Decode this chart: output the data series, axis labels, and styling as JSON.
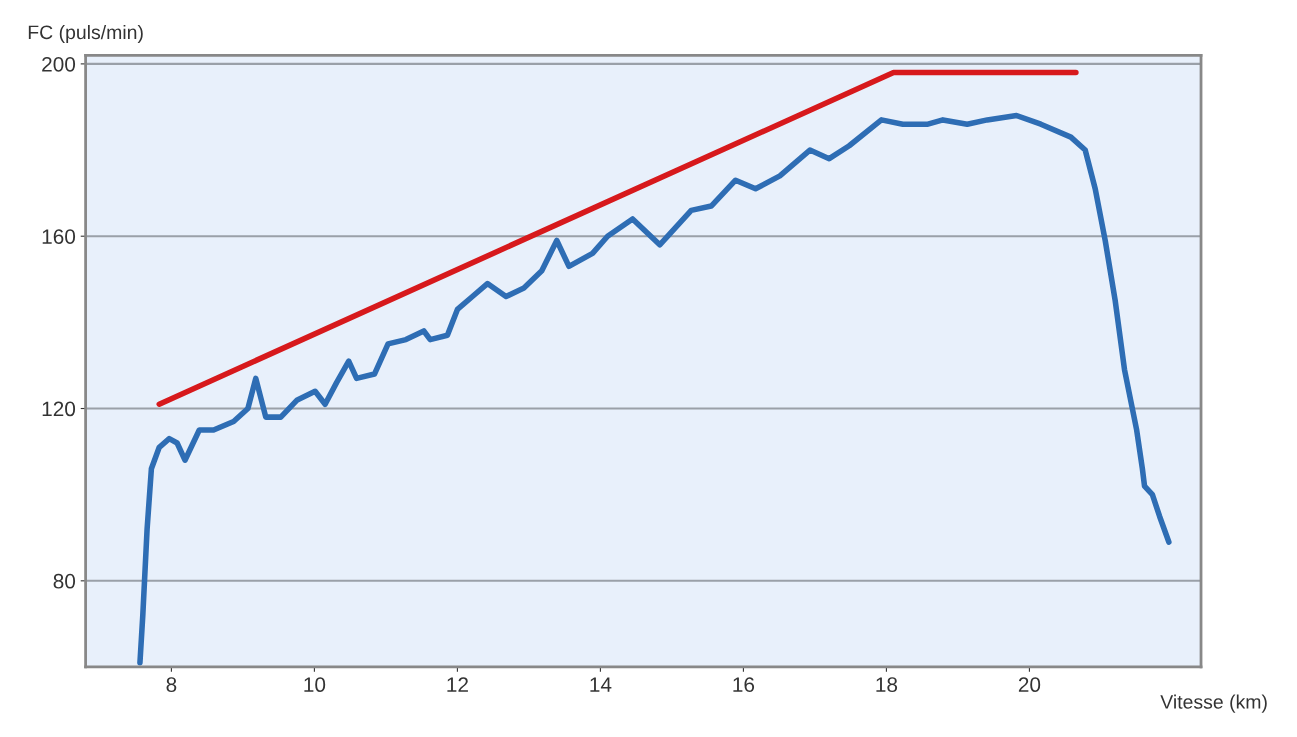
{
  "chart_data": {
    "type": "line",
    "xlabel": "Vitesse (km)",
    "ylabel": "FC (puls/min)",
    "xlim": [
      6.8,
      22.4
    ],
    "ylim": [
      60,
      202
    ],
    "xticks": [
      8,
      10,
      12,
      14,
      16,
      18,
      20
    ],
    "yticks": [
      80,
      120,
      160,
      200
    ],
    "grid": "y",
    "legend": false,
    "line_style": "solid",
    "marker": "none",
    "series": [
      {
        "color": "#2e6db4",
        "x": [
          7.56,
          7.6,
          7.66,
          7.72,
          7.83,
          7.97,
          8.08,
          8.19,
          8.39,
          8.59,
          8.87,
          9.07,
          9.18,
          9.32,
          9.53,
          9.76,
          10.01,
          10.15,
          10.31,
          10.48,
          10.59,
          10.84,
          11.03,
          11.28,
          11.53,
          11.62,
          11.86,
          12.0,
          12.21,
          12.42,
          12.68,
          12.93,
          13.18,
          13.39,
          13.56,
          13.89,
          14.1,
          14.45,
          14.83,
          15.27,
          15.55,
          15.89,
          16.17,
          16.51,
          16.93,
          17.2,
          17.48,
          17.93,
          18.23,
          18.58,
          18.79,
          19.13,
          19.41,
          19.82,
          20.16,
          20.58,
          20.78,
          20.92,
          21.06,
          21.2,
          21.33,
          21.5,
          21.58,
          21.61,
          21.72,
          21.82,
          21.95
        ],
        "values": [
          61,
          72,
          92,
          106,
          111,
          113,
          112,
          108,
          115,
          115,
          117,
          120,
          127,
          118,
          118,
          122,
          124,
          121,
          126,
          131,
          127,
          128,
          135,
          136,
          138,
          136,
          137,
          143,
          146,
          149,
          146,
          148,
          152,
          159,
          153,
          156,
          160,
          164,
          158,
          166,
          167,
          173,
          171,
          174,
          180,
          178,
          181,
          187,
          186,
          186,
          187,
          186,
          187,
          188,
          186,
          183,
          180,
          171,
          159,
          145,
          129,
          115,
          106,
          102,
          100,
          95,
          89
        ]
      },
      {
        "color": "#d7191c",
        "x": [
          7.83,
          18.1,
          20.65
        ],
        "values": [
          121,
          198,
          198
        ]
      }
    ]
  }
}
